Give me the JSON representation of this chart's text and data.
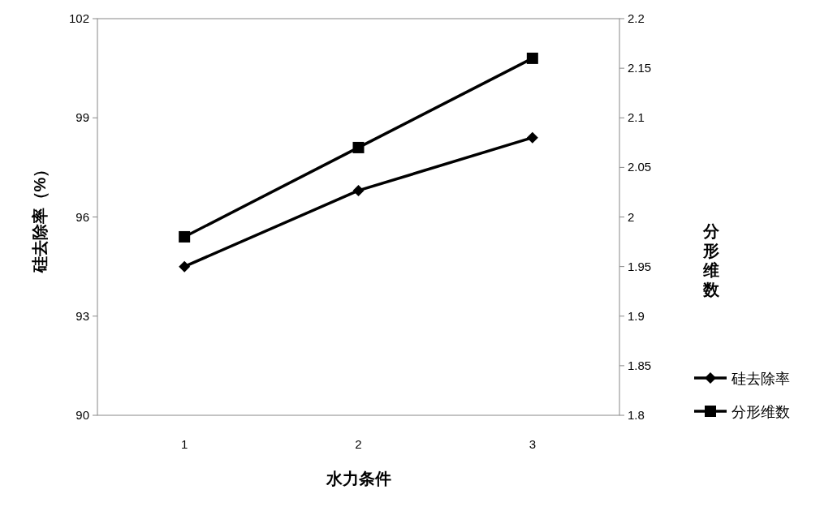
{
  "chart_data": {
    "type": "line",
    "xlabel": "水力条件",
    "ylabel": "硅去除率（%）",
    "y2label": "分形维数",
    "categories": [
      "1",
      "2",
      "3"
    ],
    "series": [
      {
        "name": "硅去除率",
        "color": "#000000",
        "marker": "diamond",
        "values": [
          94.5,
          96.8,
          98.4
        ]
      },
      {
        "name": "分形维数",
        "color": "#000000",
        "marker": "square",
        "axis": "y2",
        "values": [
          1.98,
          2.07,
          2.16
        ]
      }
    ],
    "ylim": [
      90,
      102
    ],
    "yticks": [
      90,
      93,
      96,
      99,
      102
    ],
    "y2lim": [
      1.8,
      2.2
    ],
    "y2ticks": [
      1.8,
      1.85,
      1.9,
      1.95,
      2,
      2.05,
      2.1,
      2.15,
      2.2
    ],
    "grid": false,
    "legend": "right",
    "line_style": "solid"
  }
}
